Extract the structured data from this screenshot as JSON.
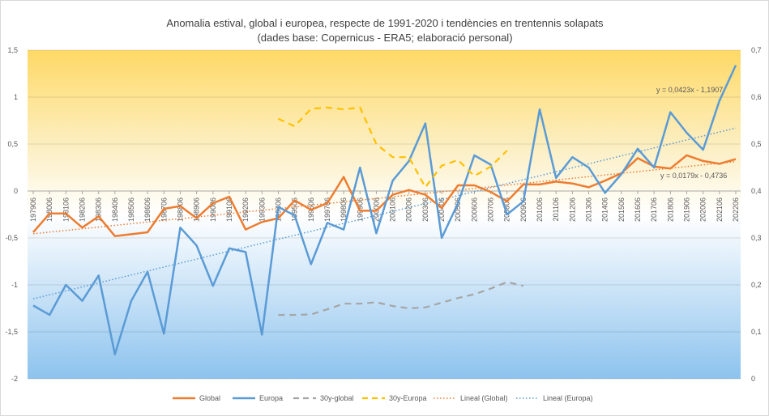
{
  "chart_data": {
    "type": "line",
    "title": "Anomalia estival, global i europea, respecte de 1991-2020 i tendències en trentennis solapats",
    "subtitle": "(dades base: Copernicus - ERA5; elaboració personal)",
    "categories": [
      "197906",
      "198006",
      "198106",
      "198206",
      "198306",
      "198406",
      "198506",
      "198606",
      "198706",
      "198806",
      "198906",
      "199006",
      "199106",
      "199206",
      "199306",
      "199406",
      "199506",
      "199606",
      "199706",
      "199806",
      "199906",
      "200006",
      "200106",
      "200206",
      "200306",
      "200406",
      "200506",
      "200606",
      "200706",
      "200806",
      "200906",
      "201006",
      "201106",
      "201206",
      "201306",
      "201406",
      "201506",
      "201606",
      "201706",
      "201806",
      "201906",
      "202006",
      "202106",
      "202206"
    ],
    "y_left": {
      "min": -2,
      "max": 1.5,
      "step": 0.5,
      "tick_labels": [
        "-2",
        "-1,5",
        "-1",
        "-0,5",
        "0",
        "0,5",
        "1",
        "1,5"
      ]
    },
    "y_right": {
      "min": 0,
      "max": 0.7,
      "step": 0.1,
      "tick_labels": [
        "0",
        "0,1",
        "0,2",
        "0,3",
        "0,4",
        "0,5",
        "0,6",
        "0,7"
      ]
    },
    "series": [
      {
        "name": "Global",
        "axis": "left",
        "style": "solid",
        "color": "#ED7D31",
        "values": [
          -0.44,
          -0.24,
          -0.24,
          -0.39,
          -0.27,
          -0.48,
          -0.46,
          -0.44,
          -0.19,
          -0.16,
          -0.29,
          -0.13,
          -0.06,
          -0.41,
          -0.33,
          -0.29,
          -0.1,
          -0.2,
          -0.13,
          0.15,
          -0.21,
          -0.21,
          -0.04,
          0.01,
          -0.04,
          -0.18,
          0.06,
          0.06,
          -0.01,
          -0.11,
          0.07,
          0.07,
          0.1,
          0.08,
          0.04,
          0.11,
          0.19,
          0.35,
          0.26,
          0.24,
          0.38,
          0.32,
          0.29,
          0.34
        ]
      },
      {
        "name": "Europa",
        "axis": "left",
        "style": "solid",
        "color": "#5B9BD5",
        "values": [
          -1.22,
          -1.32,
          -1.0,
          -1.17,
          -0.9,
          -1.74,
          -1.17,
          -0.86,
          -1.52,
          -0.39,
          -0.58,
          -1.01,
          -0.61,
          -0.65,
          -1.53,
          -0.17,
          -0.26,
          -0.78,
          -0.34,
          -0.41,
          0.25,
          -0.45,
          0.11,
          0.32,
          0.72,
          -0.5,
          -0.13,
          0.38,
          0.28,
          -0.25,
          -0.11,
          0.87,
          0.14,
          0.36,
          0.25,
          -0.02,
          0.18,
          0.45,
          0.25,
          0.84,
          0.62,
          0.44,
          0.96,
          1.34
        ]
      },
      {
        "name": "30y-global",
        "axis": "right",
        "style": "dashed",
        "color": "#A5A5A5",
        "values": [
          null,
          null,
          null,
          null,
          null,
          null,
          null,
          null,
          null,
          null,
          null,
          null,
          null,
          null,
          null,
          0.136,
          0.136,
          0.137,
          0.148,
          0.16,
          0.16,
          0.163,
          0.155,
          0.15,
          0.152,
          0.162,
          0.172,
          0.18,
          0.192,
          0.206,
          0.198,
          null,
          null,
          null,
          null,
          null,
          null,
          null,
          null,
          null,
          null,
          null,
          null,
          null
        ]
      },
      {
        "name": "30y-Europa",
        "axis": "right",
        "style": "dashed",
        "color": "#FFC000",
        "values": [
          null,
          null,
          null,
          null,
          null,
          null,
          null,
          null,
          null,
          null,
          null,
          null,
          null,
          null,
          null,
          0.554,
          0.538,
          0.575,
          0.578,
          0.574,
          0.578,
          0.5,
          0.472,
          0.472,
          0.408,
          0.454,
          0.466,
          0.432,
          0.452,
          0.486,
          null,
          null,
          null,
          null,
          null,
          null,
          null,
          null,
          null,
          null,
          null,
          null,
          null,
          null
        ]
      },
      {
        "name": "Lineal  (Global)",
        "axis": "left",
        "style": "dotted",
        "color": "#ED7D31",
        "trend": {
          "slope": 0.0179,
          "intercept": -0.4736
        },
        "equation": "y = 0,0179x - 0,4736",
        "equation_color": "#C00000"
      },
      {
        "name": "Lineal  (Europa)",
        "axis": "left",
        "style": "dotted",
        "color": "#5B9BD5",
        "trend": {
          "slope": 0.0423,
          "intercept": -1.1907
        },
        "equation": "y = 0,0423x - 1,1907",
        "equation_color": "#2E75B6"
      }
    ],
    "legend_position": "bottom",
    "grid": true,
    "background": {
      "top_color": "#FFD966",
      "middle_color": "#FFFFFF",
      "bottom_color": "#8DC3EE"
    }
  }
}
